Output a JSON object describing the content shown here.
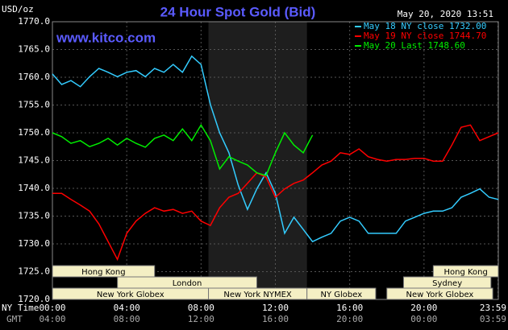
{
  "chart_data": {
    "type": "line",
    "title": "24 Hour Spot Gold (Bid)",
    "subtitle": "www.kitco.com",
    "timestamp": "May 20, 2020 13:51",
    "y_label": "USD/oz",
    "x_label": "NY Time",
    "x2_label": "GMT",
    "xlim": [
      0,
      24
    ],
    "ylim": [
      1720,
      1770
    ],
    "xticks": [
      {
        "value": 0,
        "label": "00:00"
      },
      {
        "value": 4,
        "label": "04:00"
      },
      {
        "value": 8,
        "label": "08:00"
      },
      {
        "value": 12,
        "label": "12:00"
      },
      {
        "value": 16,
        "label": "16:00"
      },
      {
        "value": 20,
        "label": "20:00"
      },
      {
        "value": 23.98,
        "label": "23:59"
      }
    ],
    "x2ticklabels": [
      "04:00",
      "08:00",
      "12:00",
      "16:00",
      "20:00",
      "00:00",
      "03:59"
    ],
    "yticks": [
      {
        "value": 1720,
        "label": "1720.0"
      },
      {
        "value": 1725,
        "label": "1725.0"
      },
      {
        "value": 1730,
        "label": "1730.0"
      },
      {
        "value": 1735,
        "label": "1735.0"
      },
      {
        "value": 1740,
        "label": "1740.0"
      },
      {
        "value": 1745,
        "label": "1745.0"
      },
      {
        "value": 1750,
        "label": "1750.0"
      },
      {
        "value": 1755,
        "label": "1755.0"
      },
      {
        "value": 1760,
        "label": "1760.0"
      },
      {
        "value": 1765,
        "label": "1765.0"
      },
      {
        "value": 1770,
        "label": "1770.0"
      }
    ],
    "grid": true,
    "x": [
      0,
      0.5,
      1,
      1.5,
      2,
      2.5,
      3,
      3.5,
      4,
      4.5,
      5,
      5.5,
      6,
      6.5,
      7,
      7.5,
      8,
      8.5,
      9,
      9.5,
      10,
      10.5,
      11,
      11.5,
      12,
      12.5,
      13,
      13.5,
      14,
      14.5,
      15,
      15.5,
      16,
      16.5,
      17,
      17.5,
      18,
      18.5,
      19,
      19.5,
      20,
      20.5,
      21,
      21.5,
      22,
      22.5,
      23,
      23.5,
      24
    ],
    "series": [
      {
        "name": "May 18 NY close 1732.00",
        "color": "#33ccff",
        "values": [
          1760.6,
          1758.7,
          1759.4,
          1758.3,
          1760.1,
          1761.6,
          1760.9,
          1760.1,
          1760.9,
          1761.2,
          1760.1,
          1761.6,
          1760.9,
          1762.3,
          1760.9,
          1763.8,
          1762.3,
          1755.1,
          1750.0,
          1746.4,
          1740.6,
          1736.2,
          1739.9,
          1742.8,
          1739.1,
          1731.9,
          1734.8,
          1732.6,
          1730.4,
          1731.2,
          1731.9,
          1734.1,
          1734.8,
          1734.1,
          1731.9,
          1731.9,
          1731.9,
          1731.9,
          1734.1,
          1734.8,
          1735.5,
          1735.9,
          1735.9,
          1736.5,
          1738.4,
          1739.1,
          1739.9,
          1738.4,
          1738.0
        ]
      },
      {
        "name": "May 19 NY close 1744.70",
        "color": "#ff0000",
        "values": [
          1739.1,
          1739.1,
          1738.0,
          1737.0,
          1735.9,
          1733.6,
          1730.4,
          1727.2,
          1731.9,
          1734.1,
          1735.5,
          1736.5,
          1735.9,
          1736.2,
          1735.5,
          1735.9,
          1734.1,
          1733.3,
          1736.5,
          1738.4,
          1739.1,
          1740.9,
          1742.8,
          1742.0,
          1738.4,
          1739.9,
          1740.9,
          1741.5,
          1742.8,
          1744.2,
          1744.9,
          1746.4,
          1746.1,
          1747.1,
          1745.7,
          1745.2,
          1744.9,
          1745.2,
          1745.2,
          1745.4,
          1745.4,
          1744.9,
          1744.9,
          1747.8,
          1751.0,
          1751.4,
          1748.6,
          1749.3,
          1750.0
        ]
      },
      {
        "name": "May 20 Last 1748.60",
        "color": "#00ee00",
        "values": [
          1750.0,
          1749.3,
          1748.1,
          1748.6,
          1747.5,
          1748.1,
          1749.0,
          1747.8,
          1749.0,
          1748.1,
          1747.4,
          1749.0,
          1749.6,
          1748.6,
          1750.7,
          1748.6,
          1751.4,
          1748.6,
          1743.5,
          1745.7,
          1744.9,
          1744.2,
          1742.8,
          1742.3,
          1746.4,
          1750.0,
          1747.8,
          1746.4,
          1749.6,
          null,
          null,
          null,
          null,
          null,
          null,
          null,
          null,
          null,
          null,
          null,
          null,
          null,
          null,
          null,
          null,
          null,
          null,
          null,
          null
        ]
      }
    ],
    "sessions": [
      {
        "label": "Hong Kong",
        "start": 0,
        "end": 5.5,
        "row": 2
      },
      {
        "label": "London",
        "start": 3.5,
        "end": 11,
        "row": 1
      },
      {
        "label": "New York Globex",
        "start": 0,
        "end": 8.4,
        "row": 0
      },
      {
        "label": "New York NYMEX",
        "start": 8.4,
        "end": 13.7,
        "row": 0,
        "shaded": true
      },
      {
        "label": "NY Globex",
        "start": 13.7,
        "end": 17.4,
        "row": 0
      },
      {
        "label": "New York Globex",
        "start": 18,
        "end": 23.7,
        "row": 0
      },
      {
        "label": "Sydney",
        "start": 18.9,
        "end": 23.6,
        "row": 1
      },
      {
        "label": "Hong Kong",
        "start": 20.5,
        "end": 24,
        "row": 2
      }
    ]
  }
}
